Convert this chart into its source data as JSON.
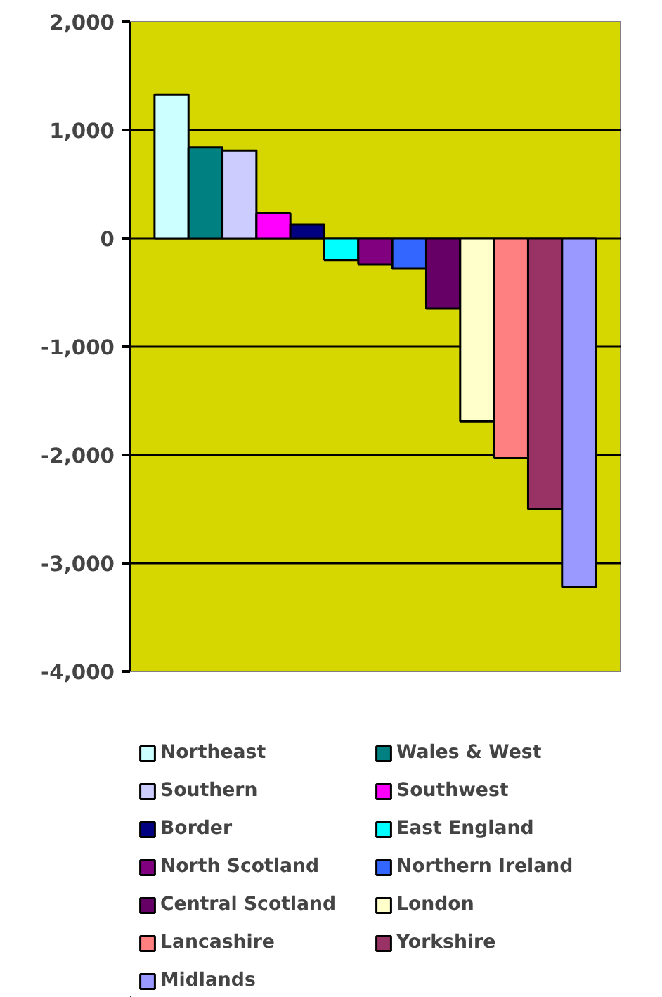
{
  "chart_data": {
    "type": "bar",
    "categories": [
      null
    ],
    "series": [
      {
        "name": "Northeast",
        "color": "#ccffff",
        "values": [
          1330
        ]
      },
      {
        "name": "Wales & West",
        "color": "#008080",
        "values": [
          840
        ]
      },
      {
        "name": "Southern",
        "color": "#ccccff",
        "values": [
          810
        ]
      },
      {
        "name": "Southwest",
        "color": "#ff00ff",
        "values": [
          230
        ]
      },
      {
        "name": "Border",
        "color": "#000080",
        "values": [
          130
        ]
      },
      {
        "name": "East England",
        "color": "#00ffff",
        "values": [
          -200
        ]
      },
      {
        "name": "North Scotland",
        "color": "#800080",
        "values": [
          -240
        ]
      },
      {
        "name": "Northern Ireland",
        "color": "#3366ff",
        "values": [
          -280
        ]
      },
      {
        "name": "Central Scotland",
        "color": "#660066",
        "values": [
          -650
        ]
      },
      {
        "name": "London",
        "color": "#ffffcc",
        "values": [
          -1690
        ]
      },
      {
        "name": "Lancashire",
        "color": "#ff8080",
        "values": [
          -2030
        ]
      },
      {
        "name": "Yorkshire",
        "color": "#993366",
        "values": [
          -2500
        ]
      },
      {
        "name": "Midlands",
        "color": "#9999ff",
        "values": [
          -3220
        ]
      }
    ],
    "ylim": [
      -4000,
      2000
    ],
    "yticks": [
      {
        "value": -4000,
        "label": "-4,000"
      },
      {
        "value": -3000,
        "label": "-3,000"
      },
      {
        "value": -2000,
        "label": "-2,000"
      },
      {
        "value": -1000,
        "label": "-1,000"
      },
      {
        "value": 0,
        "label": "0"
      },
      {
        "value": 1000,
        "label": "1,000"
      },
      {
        "value": 2000,
        "label": "2,000"
      }
    ],
    "grid": "y",
    "legend": "bottom",
    "tick_labels": "y"
  }
}
